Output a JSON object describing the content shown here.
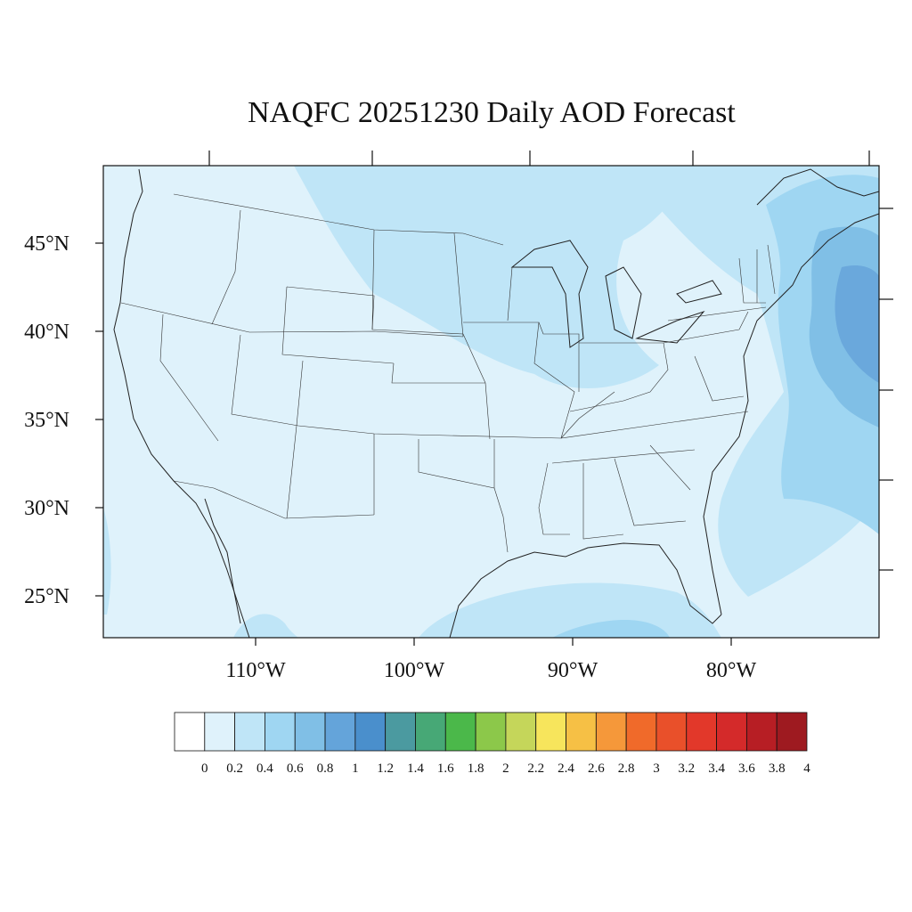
{
  "title": "NAQFC 20251230 Daily AOD Forecast",
  "map": {
    "region": "CONUS",
    "lat_labels": [
      "45°N",
      "40°N",
      "35°N",
      "30°N",
      "25°N"
    ],
    "lon_labels": [
      "110°W",
      "100°W",
      "90°W",
      "80°W"
    ]
  },
  "colorbar": {
    "labels": [
      "0",
      "0.2",
      "0.4",
      "0.6",
      "0.8",
      "1",
      "1.2",
      "1.4",
      "1.6",
      "1.8",
      "2",
      "2.2",
      "2.4",
      "2.6",
      "2.8",
      "3",
      "3.2",
      "3.4",
      "3.6",
      "3.8",
      "4"
    ],
    "colors": [
      "#ffffff",
      "#dff2fb",
      "#bfe5f7",
      "#9fd6f2",
      "#80bfe6",
      "#64a4da",
      "#4a8fcc",
      "#4b9aa0",
      "#47a876",
      "#4bb84a",
      "#8cc84a",
      "#c5d65a",
      "#f7e55c",
      "#f6c045",
      "#f5983a",
      "#f06a2a",
      "#e9502a",
      "#e2382a",
      "#d42a2a",
      "#b71e24",
      "#9e1a20"
    ]
  }
}
